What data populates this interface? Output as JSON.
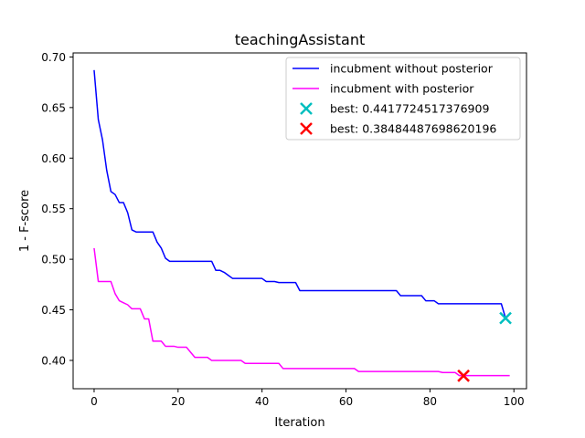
{
  "chart_data": {
    "type": "line",
    "title": "teachingAssistant",
    "xlabel": "Iteration",
    "ylabel": "1 - F-score",
    "xlim": [
      -5,
      103
    ],
    "ylim": [
      0.372,
      0.704
    ],
    "x_ticks": [
      0,
      20,
      40,
      60,
      80,
      100
    ],
    "x_tick_labels": [
      "0",
      "20",
      "40",
      "60",
      "80",
      "100"
    ],
    "y_ticks": [
      0.4,
      0.45,
      0.5,
      0.55,
      0.6,
      0.65,
      0.7
    ],
    "y_tick_labels": [
      "0.40",
      "0.45",
      "0.50",
      "0.55",
      "0.60",
      "0.65",
      "0.70"
    ],
    "grid": false,
    "legend_position": "upper-right",
    "series": [
      {
        "name": "incubment without posterior",
        "color": "#0000ff",
        "points": [
          [
            0,
            0.687
          ],
          [
            1,
            0.638
          ],
          [
            2,
            0.618
          ],
          [
            3,
            0.588
          ],
          [
            4,
            0.567
          ],
          [
            5,
            0.564
          ],
          [
            6,
            0.556
          ],
          [
            7,
            0.556
          ],
          [
            8,
            0.546
          ],
          [
            9,
            0.529
          ],
          [
            10,
            0.527
          ],
          [
            11,
            0.527
          ],
          [
            12,
            0.527
          ],
          [
            13,
            0.527
          ],
          [
            14,
            0.527
          ],
          [
            15,
            0.517
          ],
          [
            16,
            0.511
          ],
          [
            17,
            0.501
          ],
          [
            18,
            0.498
          ],
          [
            19,
            0.498
          ],
          [
            27,
            0.498
          ],
          [
            28,
            0.498
          ],
          [
            29,
            0.489
          ],
          [
            30,
            0.489
          ],
          [
            31,
            0.487
          ],
          [
            32,
            0.484
          ],
          [
            33,
            0.481
          ],
          [
            34,
            0.481
          ],
          [
            39,
            0.481
          ],
          [
            40,
            0.481
          ],
          [
            41,
            0.478
          ],
          [
            43,
            0.478
          ],
          [
            44,
            0.477
          ],
          [
            48,
            0.477
          ],
          [
            49,
            0.469
          ],
          [
            72,
            0.469
          ],
          [
            73,
            0.464
          ],
          [
            78,
            0.464
          ],
          [
            79,
            0.459
          ],
          [
            81,
            0.459
          ],
          [
            82,
            0.456
          ],
          [
            97,
            0.456
          ],
          [
            98,
            0.442
          ]
        ]
      },
      {
        "name": "incubment with posterior",
        "color": "#ff00ff",
        "points": [
          [
            0,
            0.511
          ],
          [
            1,
            0.478
          ],
          [
            2,
            0.478
          ],
          [
            3,
            0.478
          ],
          [
            4,
            0.478
          ],
          [
            5,
            0.466
          ],
          [
            6,
            0.459
          ],
          [
            7,
            0.457
          ],
          [
            8,
            0.455
          ],
          [
            9,
            0.451
          ],
          [
            10,
            0.451
          ],
          [
            11,
            0.451
          ],
          [
            12,
            0.441
          ],
          [
            13,
            0.441
          ],
          [
            14,
            0.419
          ],
          [
            15,
            0.419
          ],
          [
            16,
            0.419
          ],
          [
            17,
            0.414
          ],
          [
            18,
            0.414
          ],
          [
            19,
            0.414
          ],
          [
            20,
            0.413
          ],
          [
            21,
            0.413
          ],
          [
            22,
            0.413
          ],
          [
            23,
            0.408
          ],
          [
            24,
            0.403
          ],
          [
            25,
            0.403
          ],
          [
            26,
            0.403
          ],
          [
            27,
            0.403
          ],
          [
            28,
            0.4
          ],
          [
            35,
            0.4
          ],
          [
            36,
            0.397
          ],
          [
            44,
            0.397
          ],
          [
            45,
            0.392
          ],
          [
            62,
            0.392
          ],
          [
            63,
            0.389
          ],
          [
            82,
            0.389
          ],
          [
            83,
            0.388
          ],
          [
            86,
            0.388
          ],
          [
            87,
            0.385
          ],
          [
            99,
            0.385
          ]
        ]
      }
    ],
    "markers": [
      {
        "name": "best: 0.4417724517376909",
        "x": 98,
        "y": 0.4418,
        "color": "#00bfbf",
        "symbol": "x"
      },
      {
        "name": "best: 0.38484487698620196",
        "x": 88,
        "y": 0.3848,
        "color": "#ff0000",
        "symbol": "x"
      }
    ]
  }
}
